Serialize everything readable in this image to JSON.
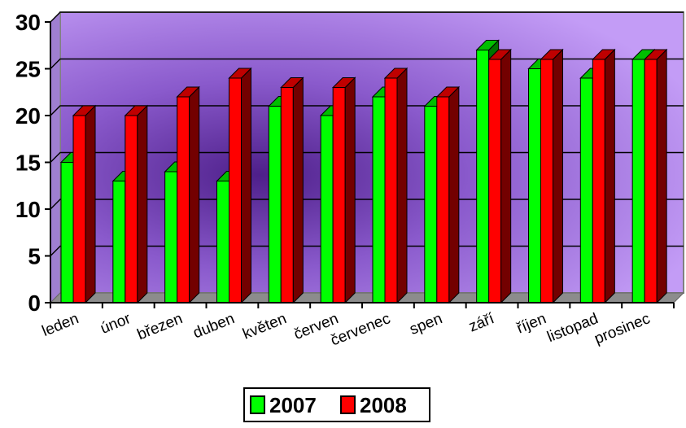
{
  "chart_data": {
    "type": "bar",
    "title": "",
    "xlabel": "",
    "ylabel": "",
    "ylim": [
      0,
      30
    ],
    "yticks": [
      "0",
      "5",
      "10",
      "15",
      "20",
      "25",
      "30"
    ],
    "grid": true,
    "legend_position": "bottom",
    "categories": [
      "leden",
      "únor",
      "březen",
      "duben",
      "květen",
      "červen",
      "červenec",
      "spen",
      "září",
      "říjen",
      "listopad",
      "prosinec"
    ],
    "series": [
      {
        "name": "2007",
        "color": "#00ff00",
        "values": [
          15,
          13,
          14,
          13,
          21,
          20,
          22,
          21,
          27,
          25,
          24,
          26
        ]
      },
      {
        "name": "2008",
        "color": "#ff0000",
        "values": [
          20,
          20,
          22,
          24,
          23,
          23,
          24,
          22,
          26,
          26,
          26,
          26
        ]
      }
    ]
  }
}
